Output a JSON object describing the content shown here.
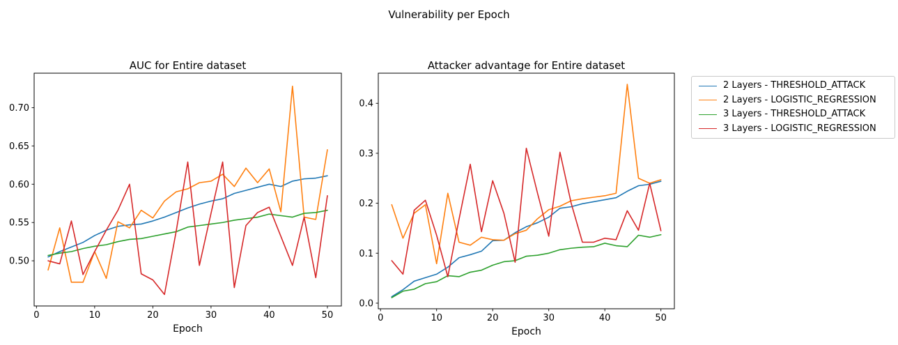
{
  "suptitle": "Vulnerability per Epoch",
  "legend": {
    "position": "outside upper right",
    "entries": [
      {
        "label": "2 Layers - THRESHOLD_ATTACK",
        "color": "#1f77b4"
      },
      {
        "label": "2 Layers - LOGISTIC_REGRESSION",
        "color": "#ff7f0e"
      },
      {
        "label": "3 Layers - THRESHOLD_ATTACK",
        "color": "#2ca02c"
      },
      {
        "label": "3 Layers - LOGISTIC_REGRESSION",
        "color": "#d62728"
      }
    ]
  },
  "chart_data": [
    {
      "type": "line",
      "title": "AUC for Entire dataset",
      "xlabel": "Epoch",
      "ylabel": "",
      "grid": false,
      "xlim": [
        -0.4,
        52.4
      ],
      "ylim": [
        0.441,
        0.745
      ],
      "xticks": [
        0,
        10,
        20,
        30,
        40,
        50
      ],
      "yticks": [
        0.5,
        0.55,
        0.6,
        0.65,
        0.7
      ],
      "ytick_labels": [
        "0.50",
        "0.55",
        "0.60",
        "0.65",
        "0.70"
      ],
      "x": [
        2,
        4,
        6,
        8,
        10,
        12,
        14,
        16,
        18,
        20,
        22,
        24,
        26,
        28,
        30,
        32,
        34,
        36,
        38,
        40,
        42,
        44,
        46,
        48,
        50
      ],
      "series": [
        {
          "name": "2 Layers - THRESHOLD_ATTACK",
          "color": "#1f77b4",
          "values": [
            0.505,
            0.512,
            0.518,
            0.524,
            0.533,
            0.54,
            0.545,
            0.547,
            0.548,
            0.552,
            0.557,
            0.563,
            0.569,
            0.574,
            0.578,
            0.581,
            0.588,
            0.592,
            0.596,
            0.6,
            0.597,
            0.604,
            0.607,
            0.608,
            0.611
          ]
        },
        {
          "name": "2 Layers - LOGISTIC_REGRESSION",
          "color": "#ff7f0e",
          "values": [
            0.488,
            0.543,
            0.472,
            0.472,
            0.512,
            0.477,
            0.551,
            0.543,
            0.566,
            0.556,
            0.578,
            0.59,
            0.594,
            0.602,
            0.604,
            0.613,
            0.597,
            0.621,
            0.602,
            0.62,
            0.564,
            0.728,
            0.557,
            0.554,
            0.645
          ]
        },
        {
          "name": "3 Layers - THRESHOLD_ATTACK",
          "color": "#2ca02c",
          "values": [
            0.507,
            0.51,
            0.512,
            0.516,
            0.519,
            0.521,
            0.525,
            0.528,
            0.529,
            0.532,
            0.535,
            0.538,
            0.544,
            0.546,
            0.548,
            0.55,
            0.553,
            0.555,
            0.557,
            0.561,
            0.559,
            0.557,
            0.562,
            0.563,
            0.566
          ]
        },
        {
          "name": "3 Layers - LOGISTIC_REGRESSION",
          "color": "#d62728",
          "values": [
            0.5,
            0.496,
            0.552,
            0.482,
            0.512,
            0.54,
            0.566,
            0.6,
            0.483,
            0.475,
            0.456,
            0.538,
            0.629,
            0.494,
            0.562,
            0.629,
            0.465,
            0.546,
            0.563,
            0.57,
            0.532,
            0.494,
            0.557,
            0.478,
            0.585
          ]
        }
      ]
    },
    {
      "type": "line",
      "title": "Attacker advantage for Entire dataset",
      "xlabel": "Epoch",
      "ylabel": "",
      "grid": false,
      "xlim": [
        -0.4,
        52.4
      ],
      "ylim": [
        -0.0112,
        0.4603
      ],
      "xticks": [
        0,
        10,
        20,
        30,
        40,
        50
      ],
      "yticks": [
        0.0,
        0.1,
        0.2,
        0.3,
        0.4
      ],
      "ytick_labels": [
        "0.0",
        "0.1",
        "0.2",
        "0.3",
        "0.4"
      ],
      "x": [
        2,
        4,
        6,
        8,
        10,
        12,
        14,
        16,
        18,
        20,
        22,
        24,
        26,
        28,
        30,
        32,
        34,
        36,
        38,
        40,
        42,
        44,
        46,
        48,
        50
      ],
      "series": [
        {
          "name": "2 Layers - THRESHOLD_ATTACK",
          "color": "#1f77b4",
          "values": [
            0.013,
            0.027,
            0.044,
            0.051,
            0.058,
            0.072,
            0.091,
            0.097,
            0.104,
            0.125,
            0.126,
            0.141,
            0.153,
            0.161,
            0.172,
            0.19,
            0.193,
            0.199,
            0.203,
            0.207,
            0.211,
            0.224,
            0.235,
            0.238,
            0.244
          ]
        },
        {
          "name": "2 Layers - LOGISTIC_REGRESSION",
          "color": "#ff7f0e",
          "values": [
            0.197,
            0.13,
            0.18,
            0.197,
            0.079,
            0.22,
            0.122,
            0.116,
            0.132,
            0.127,
            0.126,
            0.139,
            0.146,
            0.169,
            0.187,
            0.194,
            0.205,
            0.209,
            0.212,
            0.215,
            0.22,
            0.438,
            0.25,
            0.24,
            0.247
          ]
        },
        {
          "name": "3 Layers - THRESHOLD_ATTACK",
          "color": "#2ca02c",
          "values": [
            0.011,
            0.024,
            0.028,
            0.039,
            0.043,
            0.055,
            0.053,
            0.062,
            0.066,
            0.076,
            0.083,
            0.085,
            0.094,
            0.096,
            0.1,
            0.107,
            0.11,
            0.112,
            0.113,
            0.12,
            0.115,
            0.113,
            0.136,
            0.132,
            0.137
          ]
        },
        {
          "name": "3 Layers - LOGISTIC_REGRESSION",
          "color": "#d62728",
          "values": [
            0.085,
            0.058,
            0.186,
            0.206,
            0.136,
            0.053,
            0.168,
            0.278,
            0.143,
            0.245,
            0.18,
            0.082,
            0.31,
            0.22,
            0.134,
            0.302,
            0.2,
            0.122,
            0.122,
            0.13,
            0.127,
            0.185,
            0.146,
            0.24,
            0.145
          ]
        }
      ]
    }
  ]
}
